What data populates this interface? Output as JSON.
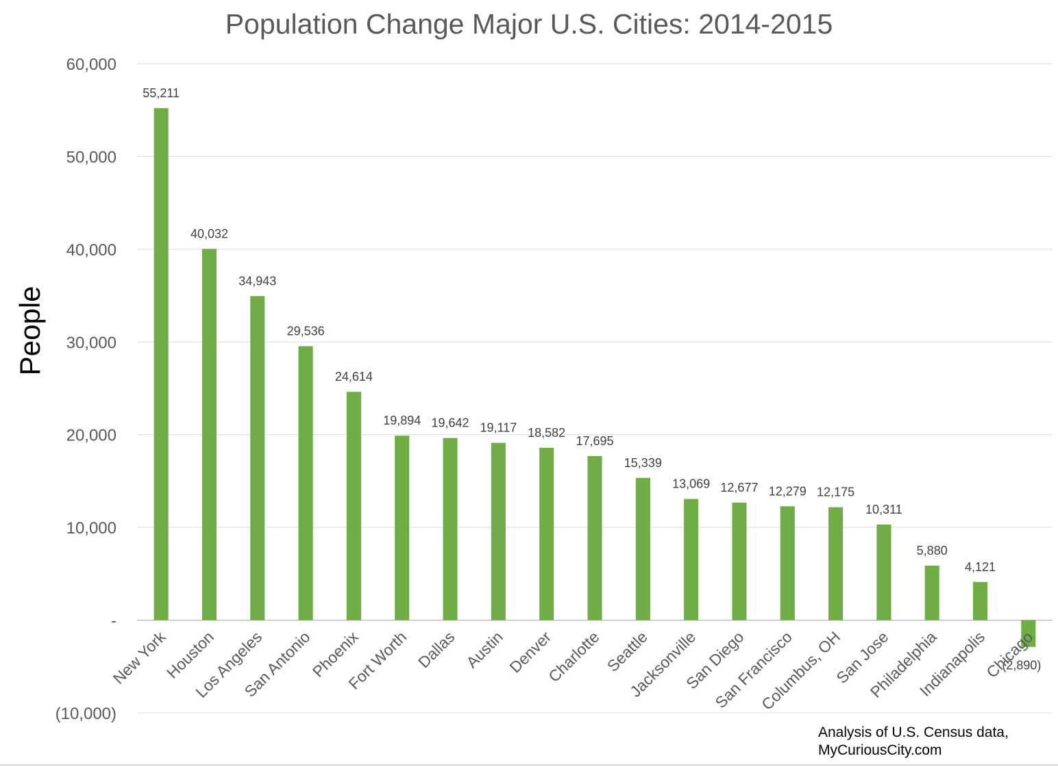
{
  "chart_data": {
    "type": "bar",
    "title": "Population Change Major U.S. Cities: 2014-2015",
    "xlabel": "",
    "ylabel": "People",
    "ylim": [
      -10000,
      60000
    ],
    "yticks": [
      -10000,
      0,
      10000,
      20000,
      30000,
      40000,
      50000,
      60000
    ],
    "ytick_labels": [
      "(10,000)",
      "-",
      "10,000",
      "20,000",
      "30,000",
      "40,000",
      "50,000",
      "60,000"
    ],
    "grid": true,
    "legend": "none",
    "bar_color": "#70AD47",
    "categories": [
      "New York",
      "Houston",
      "Los Angeles",
      "San Antonio",
      "Phoenix",
      "Fort Worth",
      "Dallas",
      "Austin",
      "Denver",
      "Charlotte",
      "Seattle",
      "Jacksonville",
      "San Diego",
      "San Francisco",
      "Columbus, OH",
      "San Jose",
      "Philadelphia",
      "Indianapolis",
      "Chicago"
    ],
    "values": [
      55211,
      40032,
      34943,
      29536,
      24614,
      19894,
      19642,
      19117,
      18582,
      17695,
      15339,
      13069,
      12677,
      12279,
      12175,
      10311,
      5880,
      4121,
      -2890
    ],
    "data_labels": [
      "55,211",
      "40,032",
      "34,943",
      "29,536",
      "24,614",
      "19,894",
      "19,642",
      "19,117",
      "18,582",
      "17,695",
      "15,339",
      "13,069",
      "12,677",
      "12,279",
      "12,175",
      "10,311",
      "5,880",
      "4,121",
      "(2,890)"
    ]
  },
  "source_note": {
    "line1": "Analysis of U.S. Census data,",
    "line2": "MyCuriousCity.com"
  }
}
